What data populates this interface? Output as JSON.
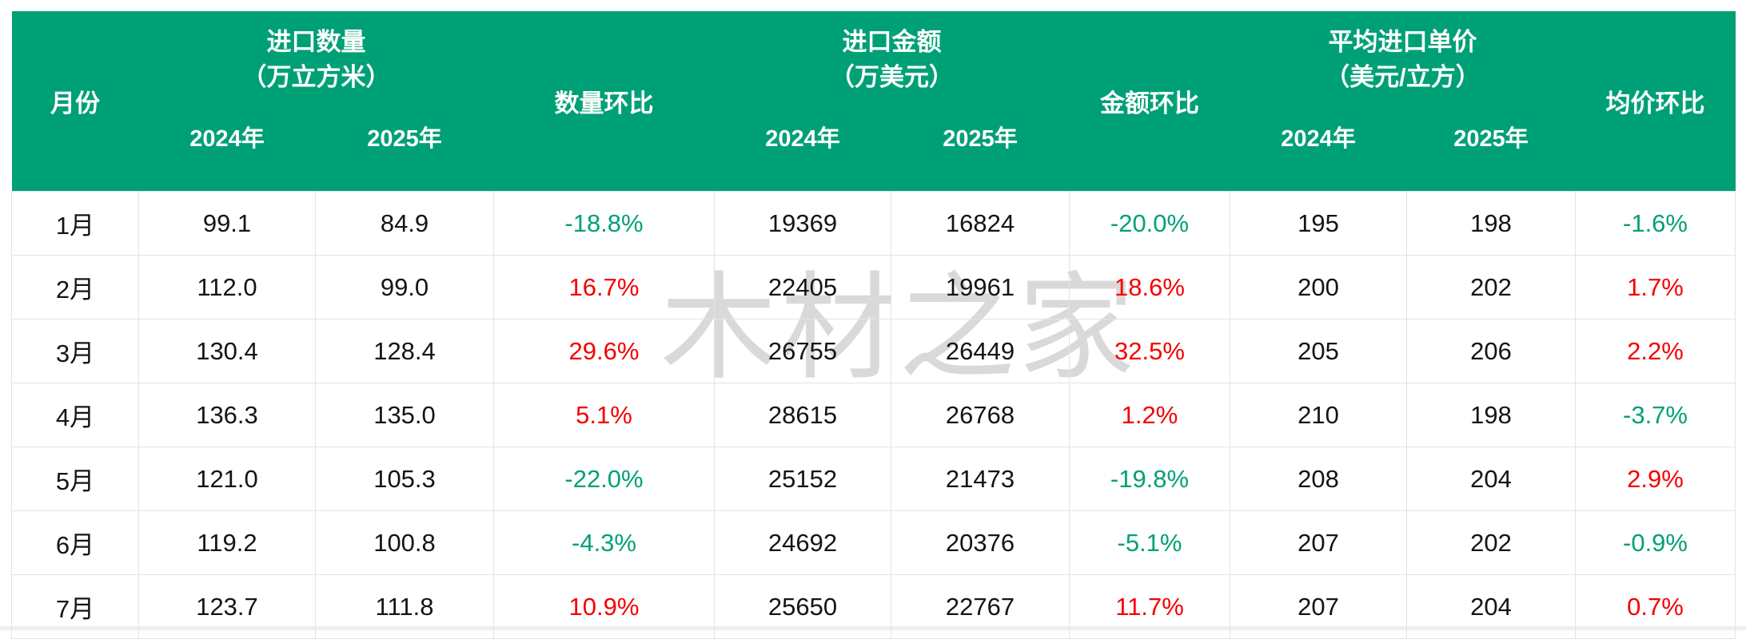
{
  "watermark": "木材之家",
  "colors": {
    "header_bg": "#00a076",
    "header_text": "#ffffff",
    "positive_mom": "#f40000",
    "negative_mom": "#00a078",
    "body_text": "#141414",
    "grid_line": "#e3e3e3",
    "watermark_gray": "#d9d9d9"
  },
  "table": {
    "header": {
      "month": "月份",
      "qty_group_title": "进口数量",
      "qty_group_unit": "（万立方米）",
      "qty_mom": "数量环比",
      "amt_group_title": "进口金额",
      "amt_group_unit": "（万美元）",
      "amt_mom": "金额环比",
      "price_group_title": "平均进口单价",
      "price_group_unit": "（美元/立方）",
      "price_mom": "均价环比",
      "year_2024": "2024年",
      "year_2025": "2025年"
    },
    "rows": [
      {
        "month": "1月",
        "qty_2024": "99.1",
        "qty_2025": "84.9",
        "qty_mom": "-18.8%",
        "amt_2024": "19369",
        "amt_2025": "16824",
        "amt_mom": "-20.0%",
        "price_2024": "195",
        "price_2025": "198",
        "price_mom": "-1.6%"
      },
      {
        "month": "2月",
        "qty_2024": "112.0",
        "qty_2025": "99.0",
        "qty_mom": "16.7%",
        "amt_2024": "22405",
        "amt_2025": "19961",
        "amt_mom": "18.6%",
        "price_2024": "200",
        "price_2025": "202",
        "price_mom": "1.7%"
      },
      {
        "month": "3月",
        "qty_2024": "130.4",
        "qty_2025": "128.4",
        "qty_mom": "29.6%",
        "amt_2024": "26755",
        "amt_2025": "26449",
        "amt_mom": "32.5%",
        "price_2024": "205",
        "price_2025": "206",
        "price_mom": "2.2%"
      },
      {
        "month": "4月",
        "qty_2024": "136.3",
        "qty_2025": "135.0",
        "qty_mom": "5.1%",
        "amt_2024": "28615",
        "amt_2025": "26768",
        "amt_mom": "1.2%",
        "price_2024": "210",
        "price_2025": "198",
        "price_mom": "-3.7%"
      },
      {
        "month": "5月",
        "qty_2024": "121.0",
        "qty_2025": "105.3",
        "qty_mom": "-22.0%",
        "amt_2024": "25152",
        "amt_2025": "21473",
        "amt_mom": "-19.8%",
        "price_2024": "208",
        "price_2025": "204",
        "price_mom": "2.9%"
      },
      {
        "month": "6月",
        "qty_2024": "119.2",
        "qty_2025": "100.8",
        "qty_mom": "-4.3%",
        "amt_2024": "24692",
        "amt_2025": "20376",
        "amt_mom": "-5.1%",
        "price_2024": "207",
        "price_2025": "202",
        "price_mom": "-0.9%"
      },
      {
        "month": "7月",
        "qty_2024": "123.7",
        "qty_2025": "111.8",
        "qty_mom": "10.9%",
        "amt_2024": "25650",
        "amt_2025": "22767",
        "amt_mom": "11.7%",
        "price_2024": "207",
        "price_2025": "204",
        "price_mom": "0.7%"
      }
    ]
  }
}
